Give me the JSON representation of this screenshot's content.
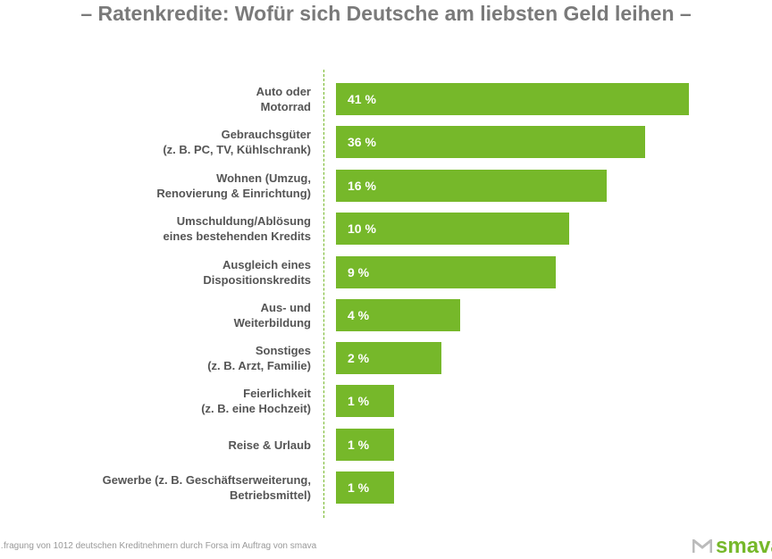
{
  "chart_data": {
    "type": "bar",
    "orientation": "horizontal",
    "title": "–  Ratenkredite: Wofür sich Deutsche am liebsten Geld leihen  –",
    "categories": [
      "Auto oder\nMotorrad",
      "Gebrauchsgüter\n(z. B. PC, TV, Kühlschrank)",
      "Wohnen (Umzug,\nRenovierung & Einrichtung)",
      "Umschuldung/Ablösung\neines bestehenden Kredits",
      "Ausgleich eines\nDispositionskredits",
      "Aus- und\nWeiterbildung",
      "Sonstiges\n(z. B. Arzt, Familie)",
      "Feierlichkeit\n(z. B. eine Hochzeit)",
      "Reise & Urlaub",
      "Gewerbe (z. B. Geschäftserweiterung,\nBetriebsmittel)"
    ],
    "values": [
      41,
      36,
      16,
      10,
      9,
      4,
      2,
      1,
      1,
      1
    ],
    "value_labels": [
      "41 %",
      "36 %",
      "16 %",
      "10 %",
      "9 %",
      "4 %",
      "2 %",
      "1 %",
      "1 %",
      "1 %"
    ],
    "unit": "%",
    "grid": false,
    "bar_color": "#76b82a"
  },
  "footer": {
    "source": "…fragung von 1012 deutschen Kreditnehmern durch Forsa im Auftrag von smava",
    "logo": "smava"
  }
}
